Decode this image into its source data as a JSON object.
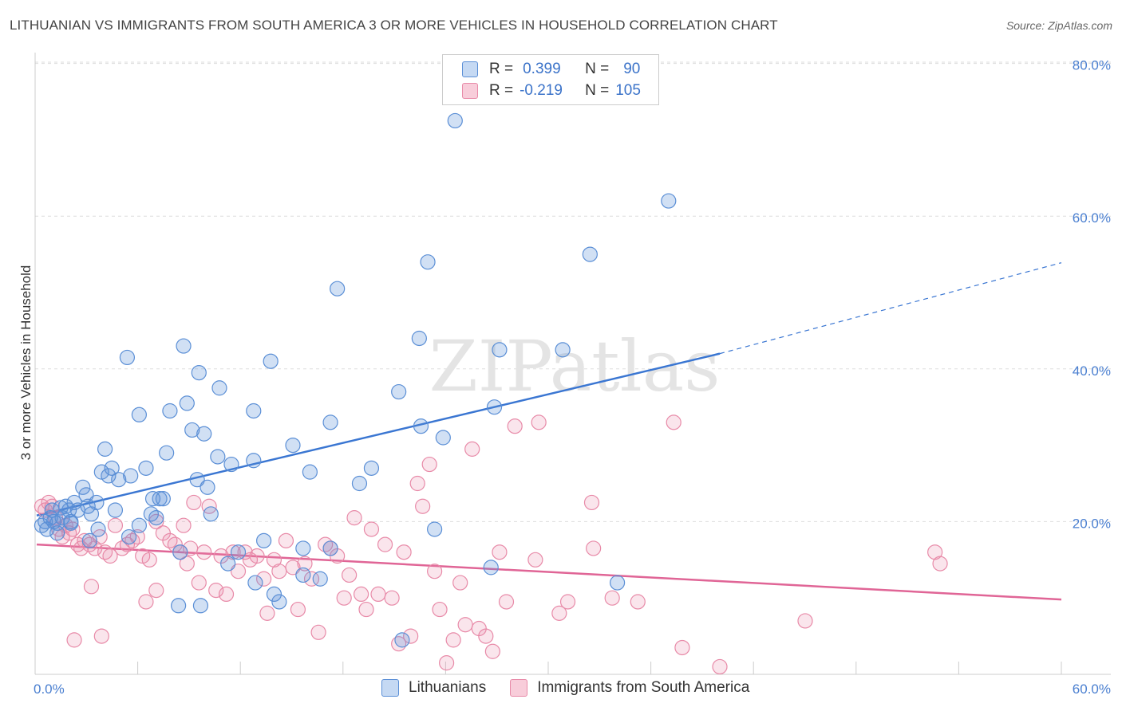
{
  "title": "LITHUANIAN VS IMMIGRANTS FROM SOUTH AMERICA 3 OR MORE VEHICLES IN HOUSEHOLD CORRELATION CHART",
  "source": "Source: ZipAtlas.com",
  "watermark": "ZIPatlas",
  "legend": {
    "series1": {
      "r_label": "R =",
      "r_value": "0.399",
      "n_label": "N =",
      "n_value": "90"
    },
    "series2": {
      "r_label": "R =",
      "r_value": "-0.219",
      "n_label": "N =",
      "n_value": "105"
    }
  },
  "bottom_legend": {
    "series1": "Lithuanians",
    "series2": "Immigrants from South America"
  },
  "chart_data": {
    "type": "scatter",
    "ylabel": "3 or more Vehicles in Household",
    "xlabel": "",
    "xlim": [
      0,
      60
    ],
    "ylim": [
      0,
      80
    ],
    "x_tick_labels": [
      "0.0%",
      "60.0%"
    ],
    "y_tick_labels": [
      "20.0%",
      "40.0%",
      "60.0%",
      "80.0%"
    ],
    "y_ticks": [
      20,
      40,
      60,
      80
    ],
    "grid": true,
    "colors": {
      "series1": "#5b8fd6",
      "series2": "#e88aa8",
      "series1_line": "#3a76d2",
      "series2_line": "#e06596"
    },
    "series": [
      {
        "name": "Lithuanians",
        "trend": {
          "x": [
            0,
            40
          ],
          "y": [
            20.8,
            42.0
          ],
          "dashed_to": [
            60,
            53.9
          ]
        },
        "points": [
          [
            0.3,
            19.5
          ],
          [
            0.5,
            20.0
          ],
          [
            0.6,
            19.0
          ],
          [
            0.8,
            20.5
          ],
          [
            0.9,
            21.5
          ],
          [
            1.0,
            20.0
          ],
          [
            1.2,
            19.8
          ],
          [
            1.4,
            21.8
          ],
          [
            1.5,
            20.5
          ],
          [
            1.7,
            22.0
          ],
          [
            1.9,
            21.5
          ],
          [
            2.0,
            20.0
          ],
          [
            2.2,
            22.5
          ],
          [
            2.4,
            21.5
          ],
          [
            2.7,
            24.5
          ],
          [
            2.9,
            23.5
          ],
          [
            3.0,
            22.0
          ],
          [
            3.2,
            21.0
          ],
          [
            3.5,
            22.5
          ],
          [
            3.8,
            26.5
          ],
          [
            4.0,
            29.5
          ],
          [
            4.2,
            26.0
          ],
          [
            4.4,
            27.0
          ],
          [
            4.8,
            25.5
          ],
          [
            5.5,
            26.0
          ],
          [
            5.3,
            41.5
          ],
          [
            6.0,
            34.0
          ],
          [
            6.4,
            27.0
          ],
          [
            6.0,
            19.5
          ],
          [
            6.8,
            23.0
          ],
          [
            7.4,
            23.0
          ],
          [
            7.8,
            34.5
          ],
          [
            7.6,
            29.0
          ],
          [
            8.6,
            43.0
          ],
          [
            8.8,
            35.5
          ],
          [
            9.1,
            32.0
          ],
          [
            9.4,
            25.5
          ],
          [
            9.8,
            31.5
          ],
          [
            9.5,
            39.5
          ],
          [
            10.0,
            24.5
          ],
          [
            10.2,
            21.0
          ],
          [
            10.6,
            28.5
          ],
          [
            10.7,
            37.5
          ],
          [
            11.4,
            27.5
          ],
          [
            11.8,
            16.0
          ],
          [
            12.7,
            28.0
          ],
          [
            12.7,
            34.5
          ],
          [
            13.3,
            17.5
          ],
          [
            13.7,
            41.0
          ],
          [
            15.0,
            30.0
          ],
          [
            15.6,
            16.5
          ],
          [
            16.0,
            26.5
          ],
          [
            17.2,
            33.0
          ],
          [
            17.2,
            16.5
          ],
          [
            18.9,
            25.0
          ],
          [
            19.6,
            27.0
          ],
          [
            21.2,
            37.0
          ],
          [
            22.4,
            44.0
          ],
          [
            22.9,
            54.0
          ],
          [
            22.5,
            32.5
          ],
          [
            23.8,
            31.0
          ],
          [
            24.5,
            72.5
          ],
          [
            26.8,
            35.0
          ],
          [
            26.6,
            14.0
          ],
          [
            27.1,
            42.5
          ],
          [
            30.8,
            42.5
          ],
          [
            32.4,
            55.0
          ],
          [
            34.0,
            12.0
          ],
          [
            37.0,
            62.0
          ],
          [
            17.6,
            50.5
          ],
          [
            13.9,
            10.5
          ],
          [
            3.1,
            17.5
          ],
          [
            5.4,
            18.0
          ],
          [
            7.0,
            20.5
          ],
          [
            8.3,
            9.0
          ],
          [
            9.6,
            9.0
          ],
          [
            11.2,
            14.5
          ],
          [
            12.8,
            12.0
          ],
          [
            14.2,
            9.5
          ],
          [
            15.6,
            13.0
          ],
          [
            16.6,
            12.5
          ],
          [
            23.3,
            19.0
          ],
          [
            21.4,
            4.5
          ],
          [
            2.0,
            19.8
          ],
          [
            1.2,
            18.5
          ],
          [
            3.6,
            19.0
          ],
          [
            4.6,
            21.5
          ],
          [
            6.7,
            21.0
          ],
          [
            7.2,
            23.0
          ],
          [
            8.4,
            16.0
          ]
        ]
      },
      {
        "name": "Immigrants from South America",
        "trend": {
          "x": [
            0,
            60
          ],
          "y": [
            17.0,
            9.8
          ]
        },
        "points": [
          [
            0.3,
            22.0
          ],
          [
            0.5,
            21.5
          ],
          [
            0.7,
            22.5
          ],
          [
            0.9,
            22.0
          ],
          [
            1.1,
            20.5
          ],
          [
            1.3,
            19.0
          ],
          [
            1.5,
            18.0
          ],
          [
            1.7,
            19.5
          ],
          [
            1.9,
            18.5
          ],
          [
            2.1,
            19.0
          ],
          [
            2.4,
            17.0
          ],
          [
            2.6,
            16.5
          ],
          [
            2.8,
            17.5
          ],
          [
            3.1,
            17.0
          ],
          [
            3.4,
            16.5
          ],
          [
            3.7,
            18.0
          ],
          [
            4.0,
            16.0
          ],
          [
            4.3,
            15.5
          ],
          [
            4.6,
            19.5
          ],
          [
            5.0,
            16.5
          ],
          [
            5.3,
            17.0
          ],
          [
            5.6,
            17.5
          ],
          [
            5.9,
            18.0
          ],
          [
            6.2,
            15.5
          ],
          [
            6.6,
            15.0
          ],
          [
            7.0,
            20.0
          ],
          [
            7.4,
            18.5
          ],
          [
            7.8,
            17.5
          ],
          [
            8.1,
            17.0
          ],
          [
            8.4,
            16.0
          ],
          [
            8.8,
            14.5
          ],
          [
            9.2,
            22.5
          ],
          [
            9.5,
            12.0
          ],
          [
            9.8,
            16.0
          ],
          [
            10.1,
            22.0
          ],
          [
            10.5,
            11.0
          ],
          [
            10.8,
            15.5
          ],
          [
            11.1,
            10.5
          ],
          [
            11.5,
            16.0
          ],
          [
            11.8,
            13.5
          ],
          [
            12.2,
            16.0
          ],
          [
            12.5,
            15.0
          ],
          [
            12.9,
            15.5
          ],
          [
            13.3,
            12.5
          ],
          [
            13.5,
            8.0
          ],
          [
            13.9,
            15.0
          ],
          [
            14.2,
            13.5
          ],
          [
            14.6,
            17.5
          ],
          [
            15.0,
            14.0
          ],
          [
            15.3,
            8.5
          ],
          [
            15.7,
            14.5
          ],
          [
            16.1,
            12.5
          ],
          [
            16.5,
            5.5
          ],
          [
            16.9,
            17.0
          ],
          [
            17.2,
            16.5
          ],
          [
            17.6,
            15.5
          ],
          [
            18.0,
            10.0
          ],
          [
            18.3,
            13.0
          ],
          [
            18.6,
            20.5
          ],
          [
            19.0,
            10.5
          ],
          [
            19.3,
            8.5
          ],
          [
            19.6,
            19.0
          ],
          [
            20.0,
            10.5
          ],
          [
            20.4,
            17.0
          ],
          [
            20.8,
            10.0
          ],
          [
            21.2,
            4.0
          ],
          [
            21.5,
            16.0
          ],
          [
            21.9,
            5.0
          ],
          [
            22.3,
            25.0
          ],
          [
            22.6,
            22.0
          ],
          [
            23.0,
            27.5
          ],
          [
            23.3,
            13.5
          ],
          [
            23.6,
            8.5
          ],
          [
            24.0,
            1.5
          ],
          [
            24.4,
            4.5
          ],
          [
            24.8,
            12.0
          ],
          [
            25.1,
            6.5
          ],
          [
            25.5,
            29.5
          ],
          [
            25.9,
            6.0
          ],
          [
            26.3,
            5.0
          ],
          [
            26.7,
            3.0
          ],
          [
            27.1,
            16.0
          ],
          [
            27.5,
            9.5
          ],
          [
            28.0,
            32.5
          ],
          [
            29.2,
            15.0
          ],
          [
            29.4,
            33.0
          ],
          [
            30.6,
            8.0
          ],
          [
            31.1,
            9.5
          ],
          [
            32.5,
            22.5
          ],
          [
            32.6,
            16.5
          ],
          [
            33.7,
            10.0
          ],
          [
            35.2,
            9.5
          ],
          [
            37.3,
            33.0
          ],
          [
            37.8,
            3.5
          ],
          [
            40.0,
            1.0
          ],
          [
            45.0,
            7.0
          ],
          [
            52.6,
            16.0
          ],
          [
            52.9,
            14.5
          ],
          [
            2.2,
            4.5
          ],
          [
            3.2,
            11.5
          ],
          [
            3.8,
            5.0
          ],
          [
            6.4,
            9.5
          ],
          [
            7.0,
            11.0
          ],
          [
            8.6,
            19.5
          ],
          [
            9.0,
            16.5
          ]
        ]
      }
    ]
  }
}
